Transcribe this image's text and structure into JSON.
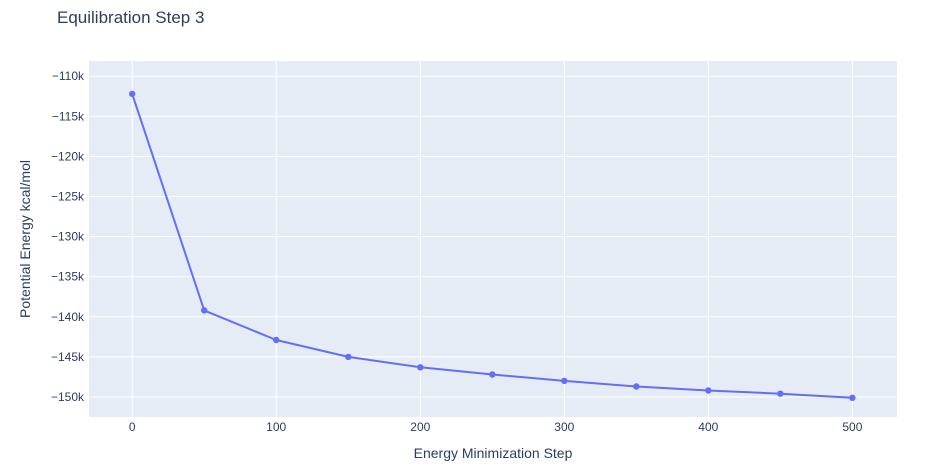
{
  "chart_data": {
    "type": "line",
    "title": "Equilibration Step 3",
    "xlabel": "Energy Minimization Step",
    "ylabel": "Potential Energy kcal/mol",
    "x": [
      0,
      50,
      100,
      150,
      200,
      250,
      300,
      350,
      400,
      450,
      500
    ],
    "y": [
      -112200,
      -139200,
      -142900,
      -145000,
      -146300,
      -147200,
      -148000,
      -148700,
      -149200,
      -149600,
      -150100
    ],
    "xlim": [
      -30,
      531
    ],
    "ylim": [
      -152500,
      -108100
    ],
    "x_ticks": [
      {
        "value": 0,
        "label": "0"
      },
      {
        "value": 100,
        "label": "100"
      },
      {
        "value": 200,
        "label": "200"
      },
      {
        "value": 300,
        "label": "300"
      },
      {
        "value": 400,
        "label": "400"
      },
      {
        "value": 500,
        "label": "500"
      }
    ],
    "y_ticks": [
      {
        "value": -110000,
        "label": "−110k"
      },
      {
        "value": -115000,
        "label": "−115k"
      },
      {
        "value": -120000,
        "label": "−120k"
      },
      {
        "value": -125000,
        "label": "−125k"
      },
      {
        "value": -130000,
        "label": "−130k"
      },
      {
        "value": -135000,
        "label": "−135k"
      },
      {
        "value": -140000,
        "label": "−140k"
      },
      {
        "value": -145000,
        "label": "−145k"
      },
      {
        "value": -150000,
        "label": "−150k"
      }
    ],
    "grid": true,
    "legend": false,
    "marker": "circle",
    "line_color": "#636efa",
    "plot_bgcolor": "#e5ecf6",
    "paper_bgcolor": "#ffffff",
    "grid_color": "#ffffff",
    "font_color": "#2a3f5f"
  }
}
